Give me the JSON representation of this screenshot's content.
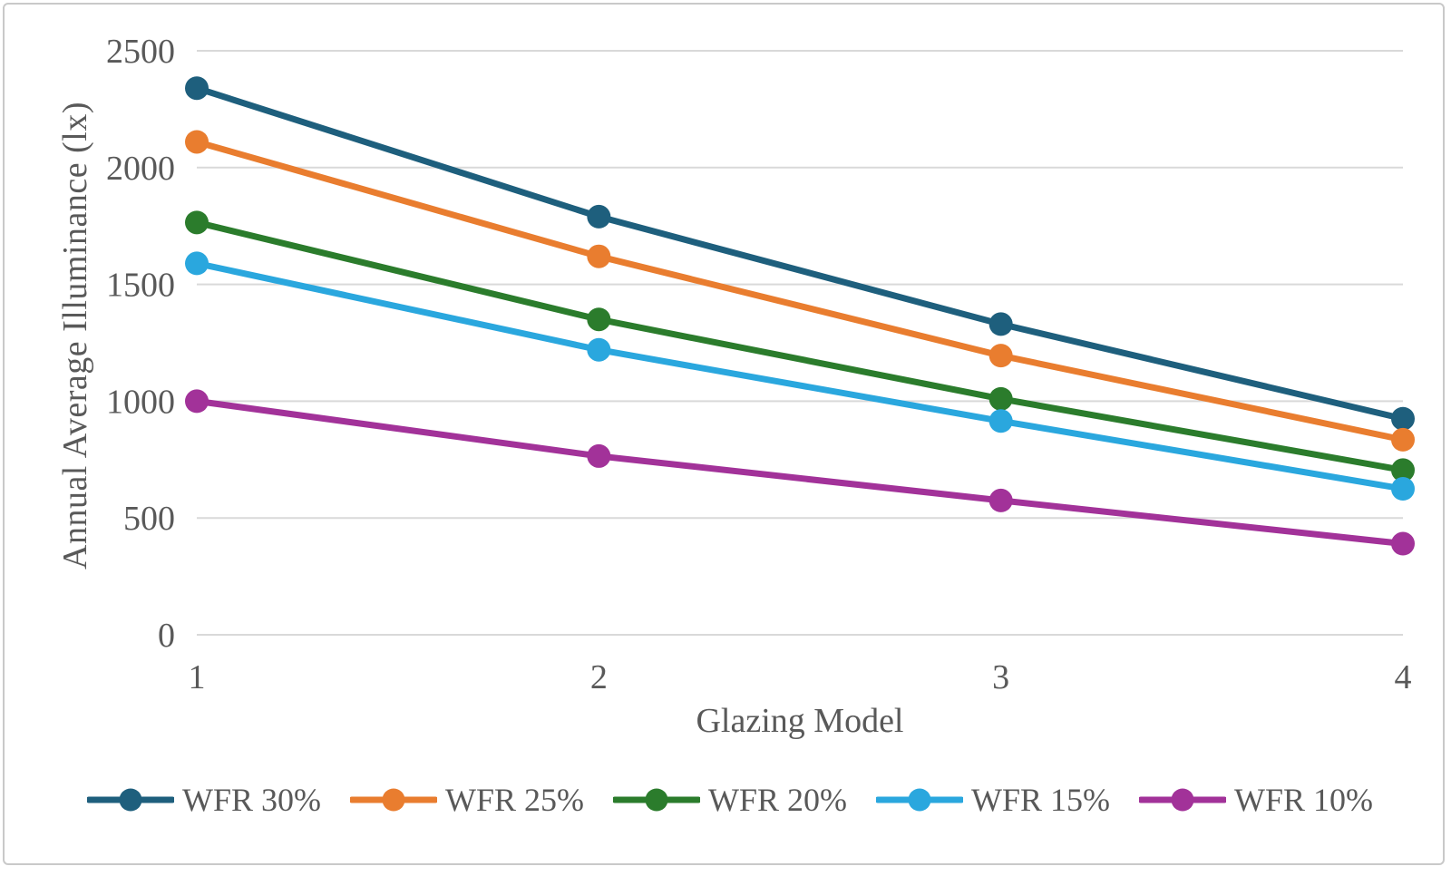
{
  "chart_data": {
    "type": "line",
    "title": "",
    "xlabel": "Glazing Model",
    "ylabel": "Annual Average Illuminance (lx)",
    "categories": [
      "1",
      "2",
      "3",
      "4"
    ],
    "yticks": [
      0,
      500,
      1000,
      1500,
      2000,
      2500
    ],
    "ylim": [
      0,
      2500
    ],
    "grid": "horizontal",
    "legend_position": "bottom",
    "series": [
      {
        "name": "WFR 30%",
        "color": "#1E5F7D",
        "values": [
          2340,
          1790,
          1330,
          925
        ]
      },
      {
        "name": "WFR 25%",
        "color": "#E97D2F",
        "values": [
          2110,
          1620,
          1195,
          835
        ]
      },
      {
        "name": "WFR 20%",
        "color": "#2B7C2C",
        "values": [
          1765,
          1350,
          1010,
          705
        ]
      },
      {
        "name": "WFR 15%",
        "color": "#2AA7DE",
        "values": [
          1590,
          1220,
          915,
          625
        ]
      },
      {
        "name": "WFR 10%",
        "color": "#A23299",
        "values": [
          1000,
          765,
          575,
          390
        ]
      }
    ],
    "style": {
      "gridline_color": "#D9D9D9",
      "axis_text_color": "#595959",
      "frame_border_color": "#C9C9C9"
    }
  }
}
